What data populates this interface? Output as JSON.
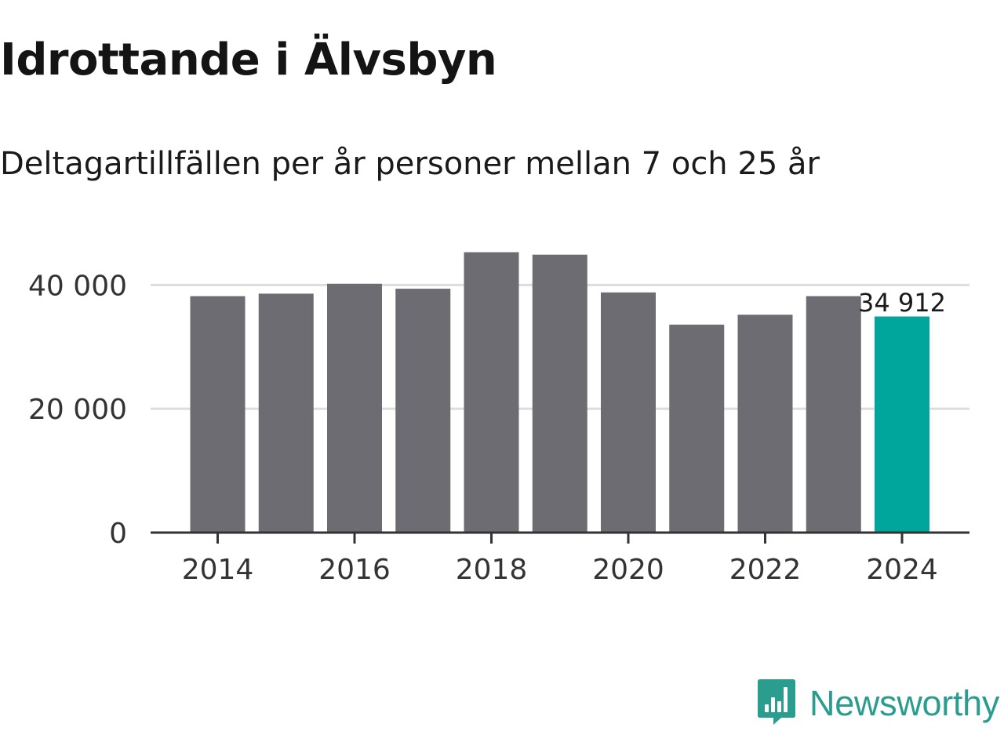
{
  "title": "Idrottande i Älvsbyn",
  "subtitle": "Deltagartillfällen per år personer mellan 7 och 25 år",
  "brand": {
    "name": "Newsworthy",
    "color": "#2a9d8f",
    "icon": "bar-chart-speech-bubble-icon"
  },
  "colors": {
    "bar": "#6d6c73",
    "highlight": "#00a69c",
    "grid": "#dddddd",
    "axis": "#333333"
  },
  "chart_data": {
    "type": "bar",
    "title": "Idrottande i Älvsbyn",
    "subtitle": "Deltagartillfällen per år personer mellan 7 och 25 år",
    "xlabel": "",
    "ylabel": "",
    "categories": [
      2014,
      2015,
      2016,
      2017,
      2018,
      2019,
      2020,
      2021,
      2022,
      2023,
      2024
    ],
    "values": [
      38200,
      38600,
      40200,
      39400,
      45300,
      44900,
      38800,
      33600,
      35200,
      38200,
      34912
    ],
    "highlight_index": 10,
    "highlight_label": "34 912",
    "ylim": [
      0,
      46000
    ],
    "yticks": [
      0,
      20000,
      40000
    ],
    "ytick_labels": [
      "0",
      "20 000",
      "40 000"
    ],
    "xticks": [
      2014,
      2016,
      2018,
      2020,
      2022,
      2024
    ],
    "xtick_labels": [
      "2014",
      "2016",
      "2018",
      "2020",
      "2022",
      "2024"
    ],
    "grid": true,
    "legend": "none"
  }
}
